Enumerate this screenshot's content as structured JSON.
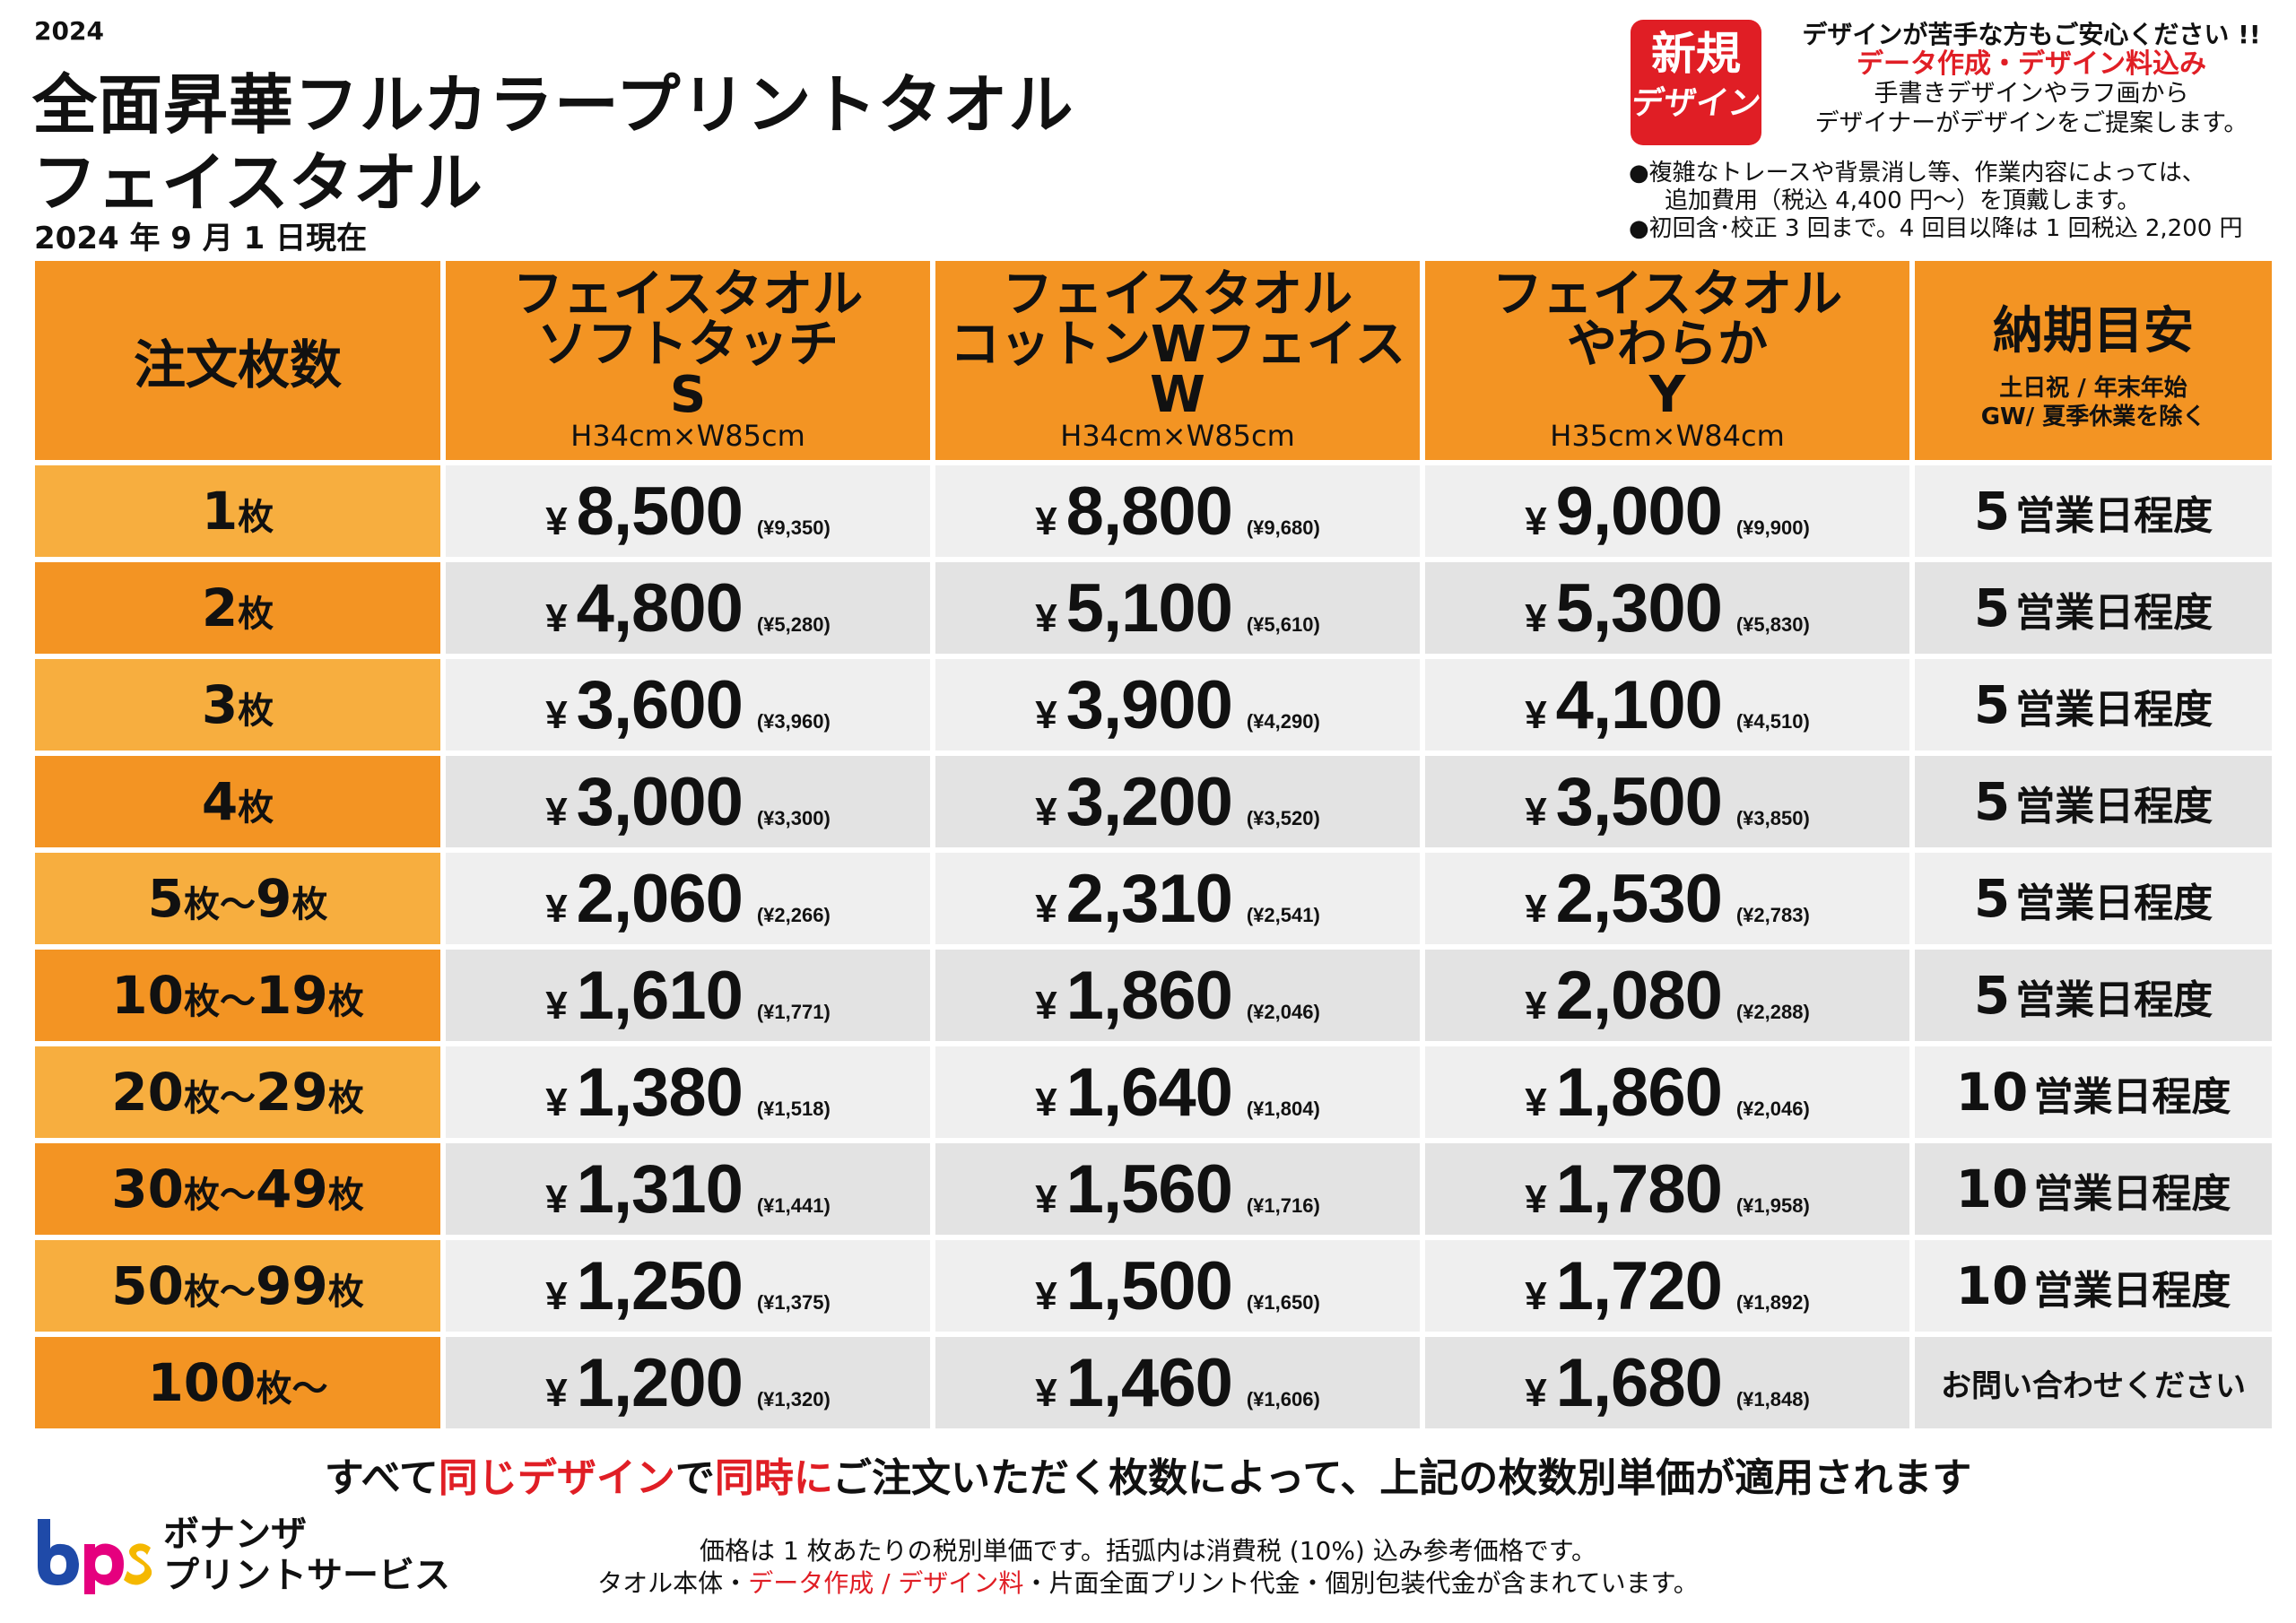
{
  "header": {
    "year": "2024",
    "title_line1": "全面昇華フルカラープリントタオル",
    "title_line2": "フェイスタオル",
    "as_of": "2024 年 9 月 1 日現在"
  },
  "badge": {
    "line1": "新規",
    "line2": "デザイン"
  },
  "notice": {
    "line1": "デザインが苦手な方もご安心ください !!",
    "line2": "データ作成・デザイン料込み",
    "line3": "手書きデザインやラフ画から",
    "line4": "デザイナーがデザインをご提案します。",
    "note1a": "●複雑なトレースや背景消し等、作業内容によっては、",
    "note1b": "追加費用（税込 4,400 円〜）を頂戴します。",
    "note2": "●初回含･校正 3 回まで。4 回目以降は 1 回税込 2,200 円"
  },
  "table": {
    "header": {
      "qty": "注文枚数",
      "products": [
        {
          "name": "フェイスタオル",
          "sub": "ソフトタッチ",
          "code": "S",
          "size": "H34cm×W85cm"
        },
        {
          "name": "フェイスタオル",
          "sub": "コットンWフェイス",
          "code": "W",
          "size": "H34cm×W85cm"
        },
        {
          "name": "フェイスタオル",
          "sub": "やわらか",
          "code": "Y",
          "size": "H35cm×W84cm"
        }
      ],
      "delivery": {
        "title": "納期目安",
        "sub1": "土日祝 / 年末年始",
        "sub2": "GW/ 夏季休業を除く"
      }
    },
    "currency": "¥",
    "unit": "枚",
    "range_sep": "〜",
    "delivery_suffix": "営業日程度",
    "rows": [
      {
        "q1": "1",
        "q2": "",
        "p": [
          [
            "8,500",
            "(¥9,350)"
          ],
          [
            "8,800",
            "(¥9,680)"
          ],
          [
            "9,000",
            "(¥9,900)"
          ]
        ],
        "d_num": "5",
        "d_text": ""
      },
      {
        "q1": "2",
        "q2": "",
        "p": [
          [
            "4,800",
            "(¥5,280)"
          ],
          [
            "5,100",
            "(¥5,610)"
          ],
          [
            "5,300",
            "(¥5,830)"
          ]
        ],
        "d_num": "5",
        "d_text": ""
      },
      {
        "q1": "3",
        "q2": "",
        "p": [
          [
            "3,600",
            "(¥3,960)"
          ],
          [
            "3,900",
            "(¥4,290)"
          ],
          [
            "4,100",
            "(¥4,510)"
          ]
        ],
        "d_num": "5",
        "d_text": ""
      },
      {
        "q1": "4",
        "q2": "",
        "p": [
          [
            "3,000",
            "(¥3,300)"
          ],
          [
            "3,200",
            "(¥3,520)"
          ],
          [
            "3,500",
            "(¥3,850)"
          ]
        ],
        "d_num": "5",
        "d_text": ""
      },
      {
        "q1": "5",
        "q2": "9",
        "p": [
          [
            "2,060",
            "(¥2,266)"
          ],
          [
            "2,310",
            "(¥2,541)"
          ],
          [
            "2,530",
            "(¥2,783)"
          ]
        ],
        "d_num": "5",
        "d_text": ""
      },
      {
        "q1": "10",
        "q2": "19",
        "p": [
          [
            "1,610",
            "(¥1,771)"
          ],
          [
            "1,860",
            "(¥2,046)"
          ],
          [
            "2,080",
            "(¥2,288)"
          ]
        ],
        "d_num": "5",
        "d_text": ""
      },
      {
        "q1": "20",
        "q2": "29",
        "p": [
          [
            "1,380",
            "(¥1,518)"
          ],
          [
            "1,640",
            "(¥1,804)"
          ],
          [
            "1,860",
            "(¥2,046)"
          ]
        ],
        "d_num": "10",
        "d_text": ""
      },
      {
        "q1": "30",
        "q2": "49",
        "p": [
          [
            "1,310",
            "(¥1,441)"
          ],
          [
            "1,560",
            "(¥1,716)"
          ],
          [
            "1,780",
            "(¥1,958)"
          ]
        ],
        "d_num": "10",
        "d_text": ""
      },
      {
        "q1": "50",
        "q2": "99",
        "p": [
          [
            "1,250",
            "(¥1,375)"
          ],
          [
            "1,500",
            "(¥1,650)"
          ],
          [
            "1,720",
            "(¥1,892)"
          ]
        ],
        "d_num": "10",
        "d_text": ""
      },
      {
        "q1": "100",
        "q2": "open",
        "p": [
          [
            "1,200",
            "(¥1,320)"
          ],
          [
            "1,460",
            "(¥1,606)"
          ],
          [
            "1,680",
            "(¥1,848)"
          ]
        ],
        "d_num": "",
        "d_text": "お問い合わせください"
      }
    ]
  },
  "applies": {
    "p1": "すべて",
    "p2": "同じデザイン",
    "p3": "で",
    "p4": "同時に",
    "p5": "ご注文いただく枚数によって、上記の枚数別単価が適用されます"
  },
  "logo": {
    "mark": "bps",
    "name_line1": "ボナンザ",
    "name_line2": "プリントサービス"
  },
  "footer": {
    "line1": "価格は 1 枚あたりの税別単価です。括弧内は消費税 (10%) 込み参考価格です。",
    "line2a": "タオル本体・",
    "line2b": "データ作成 / デザイン料",
    "line2c": "・片面全面プリント代金・個別包装代金が含まれています。"
  },
  "colors": {
    "orange_dark": "#f39423",
    "orange_light": "#f7ae3f",
    "red": "#e01e25",
    "logo_blue": "#1f4aa8",
    "logo_magenta": "#e5007e",
    "logo_yellow": "#f5b800"
  }
}
